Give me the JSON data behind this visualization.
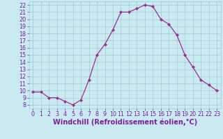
{
  "x": [
    0,
    1,
    2,
    3,
    4,
    5,
    6,
    7,
    8,
    9,
    10,
    11,
    12,
    13,
    14,
    15,
    16,
    17,
    18,
    19,
    20,
    21,
    22,
    23
  ],
  "y": [
    9.8,
    9.8,
    9.0,
    9.0,
    8.5,
    8.0,
    8.7,
    11.5,
    15.0,
    16.5,
    18.5,
    21.0,
    21.0,
    21.5,
    22.0,
    21.8,
    20.0,
    19.3,
    17.8,
    15.0,
    13.3,
    11.5,
    10.8,
    10.0
  ],
  "line_color": "#9b2d8e",
  "marker": "D",
  "marker_size": 2.2,
  "bg_color": "#c8eaf0",
  "grid_color": "#a0c8d8",
  "xlabel": "Windchill (Refroidissement éolien,°C)",
  "xlim": [
    -0.5,
    23.5
  ],
  "ylim": [
    7.5,
    22.5
  ],
  "xticks": [
    0,
    1,
    2,
    3,
    4,
    5,
    6,
    7,
    8,
    9,
    10,
    11,
    12,
    13,
    14,
    15,
    16,
    17,
    18,
    19,
    20,
    21,
    22,
    23
  ],
  "yticks": [
    8,
    9,
    10,
    11,
    12,
    13,
    14,
    15,
    16,
    17,
    18,
    19,
    20,
    21,
    22
  ],
  "tick_label_color": "#7b1fa2",
  "xlabel_color": "#7b1fa2",
  "tick_fontsize": 5.8,
  "xlabel_fontsize": 7.0
}
